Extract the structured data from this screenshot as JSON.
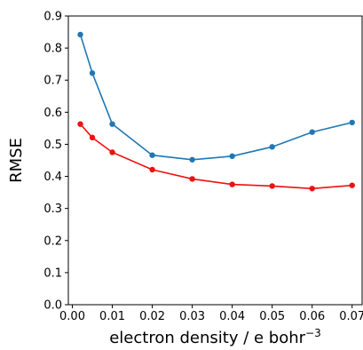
{
  "chart_data": {
    "type": "line",
    "xlabel": "electron density / e bohr",
    "xlabel_superscript": "−3",
    "ylabel": "RMSE",
    "xlim": [
      -0.001,
      0.0725
    ],
    "ylim": [
      0,
      0.9
    ],
    "x_ticks": [
      "0.00",
      "0.01",
      "0.02",
      "0.03",
      "0.04",
      "0.05",
      "0.06",
      "0.07"
    ],
    "y_ticks": [
      "0.0",
      "0.1",
      "0.2",
      "0.3",
      "0.4",
      "0.5",
      "0.6",
      "0.7",
      "0.8",
      "0.9"
    ],
    "x": [
      0.002,
      0.005,
      0.01,
      0.02,
      0.03,
      0.04,
      0.05,
      0.06,
      0.07
    ],
    "series": [
      {
        "color": "#1f77b4",
        "values": [
          0.842,
          0.722,
          0.563,
          0.466,
          0.452,
          0.463,
          0.492,
          0.538,
          0.568
        ]
      },
      {
        "color": "#ee1111",
        "values": [
          0.563,
          0.521,
          0.475,
          0.421,
          0.392,
          0.375,
          0.37,
          0.362,
          0.372
        ]
      }
    ],
    "grid": false,
    "legend": "none"
  }
}
